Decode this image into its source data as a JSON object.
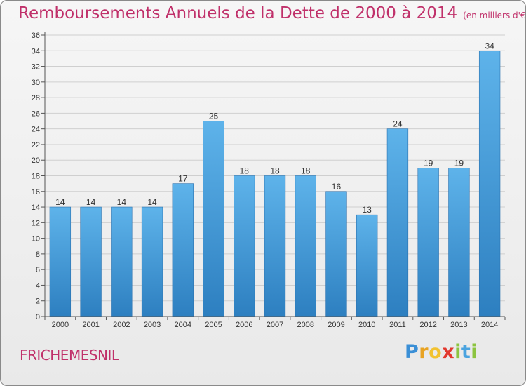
{
  "title": "Remboursements Annuels de la Dette de 2000 à 2014",
  "unit_note": "(en milliers d'€)",
  "town": "FRICHEMESNIL",
  "logo": {
    "letters": [
      "P",
      "r",
      "o",
      "x",
      "i",
      "t",
      "i"
    ],
    "colors": [
      "#3a8fd6",
      "#e8a323",
      "#f2c230",
      "#e2382e",
      "#8cc43f",
      "#4aa3df",
      "#8cc43f"
    ]
  },
  "colors": {
    "title": "#c0306a",
    "bar_top": "#5eb3ea",
    "bar_bottom": "#2d7fc0",
    "grid": "#cfcfcf"
  },
  "chart_data": {
    "type": "bar",
    "categories": [
      "2000",
      "2001",
      "2002",
      "2003",
      "2004",
      "2005",
      "2006",
      "2007",
      "2008",
      "2009",
      "2010",
      "2011",
      "2012",
      "2013",
      "2014"
    ],
    "values": [
      14,
      14,
      14,
      14,
      17,
      25,
      18,
      18,
      18,
      16,
      13,
      24,
      19,
      19,
      34
    ],
    "ylim": [
      0,
      36
    ],
    "yticks": [
      0,
      2,
      4,
      6,
      8,
      10,
      12,
      14,
      16,
      18,
      20,
      22,
      24,
      26,
      28,
      30,
      32,
      34,
      36
    ],
    "grid": true
  }
}
